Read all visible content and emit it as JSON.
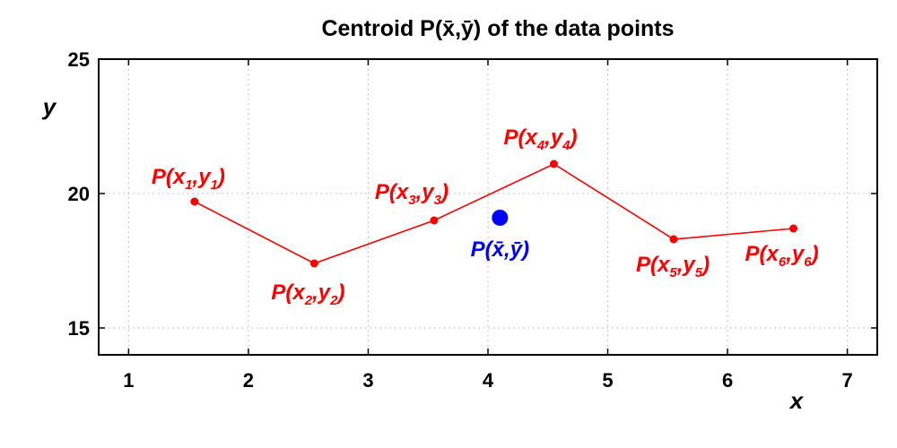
{
  "chart_data": {
    "type": "line",
    "title": "Centroid P(x̄,ȳ) of the data points",
    "xlabel": "x",
    "ylabel": "y",
    "xlim": [
      0.75,
      7.25
    ],
    "ylim": [
      14,
      25
    ],
    "xticks": [
      1,
      2,
      3,
      4,
      5,
      6,
      7
    ],
    "yticks": [
      15,
      20,
      25
    ],
    "grid": true,
    "series": [
      {
        "color": "#ff0000",
        "x": [
          1.55,
          2.55,
          3.55,
          4.55,
          5.55,
          6.55
        ],
        "y": [
          19.7,
          17.4,
          19.0,
          21.1,
          18.3,
          18.7
        ],
        "labels": [
          {
            "main": "x",
            "sub": "1",
            "main2": "y",
            "sub2": "1"
          },
          {
            "main": "x",
            "sub": "2",
            "main2": "y",
            "sub2": "2"
          },
          {
            "main": "x",
            "sub": "3",
            "main2": "y",
            "sub2": "3"
          },
          {
            "main": "x",
            "sub": "4",
            "main2": "y",
            "sub2": "4"
          },
          {
            "main": "x",
            "sub": "5",
            "main2": "y",
            "sub2": "5"
          },
          {
            "main": "x",
            "sub": "6",
            "main2": "y",
            "sub2": "6"
          }
        ]
      }
    ],
    "centroid": {
      "color": "#0000ff",
      "x": 4.1,
      "y": 19.1,
      "label": "P(x̄,ȳ)"
    }
  }
}
